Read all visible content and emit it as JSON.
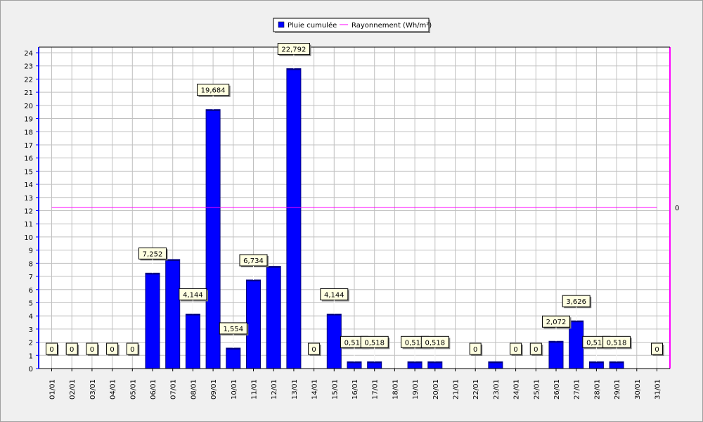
{
  "chart_data": {
    "type": "bar",
    "title": "",
    "xlabel": "",
    "ylabel": "",
    "ylim": [
      0,
      24
    ],
    "grid": true,
    "legend_placement": "top-center",
    "categories": [
      "01/01",
      "02/01",
      "03/01",
      "04/01",
      "05/01",
      "06/01",
      "07/01",
      "08/01",
      "09/01",
      "10/01",
      "11/01",
      "12/01",
      "13/01",
      "14/01",
      "15/01",
      "16/01",
      "17/01",
      "18/01",
      "19/01",
      "20/01",
      "21/01",
      "22/01",
      "23/01",
      "24/01",
      "25/01",
      "26/01",
      "27/01",
      "28/01",
      "29/01",
      "30/01",
      "31/01"
    ],
    "series": [
      {
        "name": "Pluie cumulée",
        "color": "#0000ff",
        "values": [
          0,
          0,
          0,
          0,
          0,
          7.252,
          8.288,
          4.144,
          19.684,
          1.554,
          6.734,
          7.77,
          22.792,
          0,
          4.144,
          0.518,
          0.518,
          0,
          0.518,
          0.518,
          0,
          0,
          0.518,
          0,
          0,
          2.072,
          3.626,
          0.518,
          0.518,
          0,
          0
        ],
        "labels": [
          "0",
          "0",
          "0",
          "0",
          "0",
          "7,252",
          "",
          "4,144",
          "19,684",
          "1,554",
          "6,734",
          "",
          "22,792",
          "0",
          "4,144",
          "0,518",
          "0,518",
          "",
          "0,518",
          "0,518",
          "",
          "0",
          "",
          "0",
          "0",
          "2,072",
          "3,626",
          "0,518",
          "0,518",
          "",
          "0"
        ]
      },
      {
        "name": "Rayonnement (Wh/m²)",
        "color": "#ff00ff",
        "type": "line",
        "values": [
          0,
          0,
          0,
          0,
          0,
          0,
          0,
          0,
          0,
          0,
          0,
          0,
          0,
          0,
          0,
          0,
          0,
          0,
          0,
          0,
          0,
          0,
          0,
          0,
          0,
          0,
          0,
          0,
          0,
          0,
          0
        ],
        "right_axis_label": "0"
      }
    ]
  }
}
